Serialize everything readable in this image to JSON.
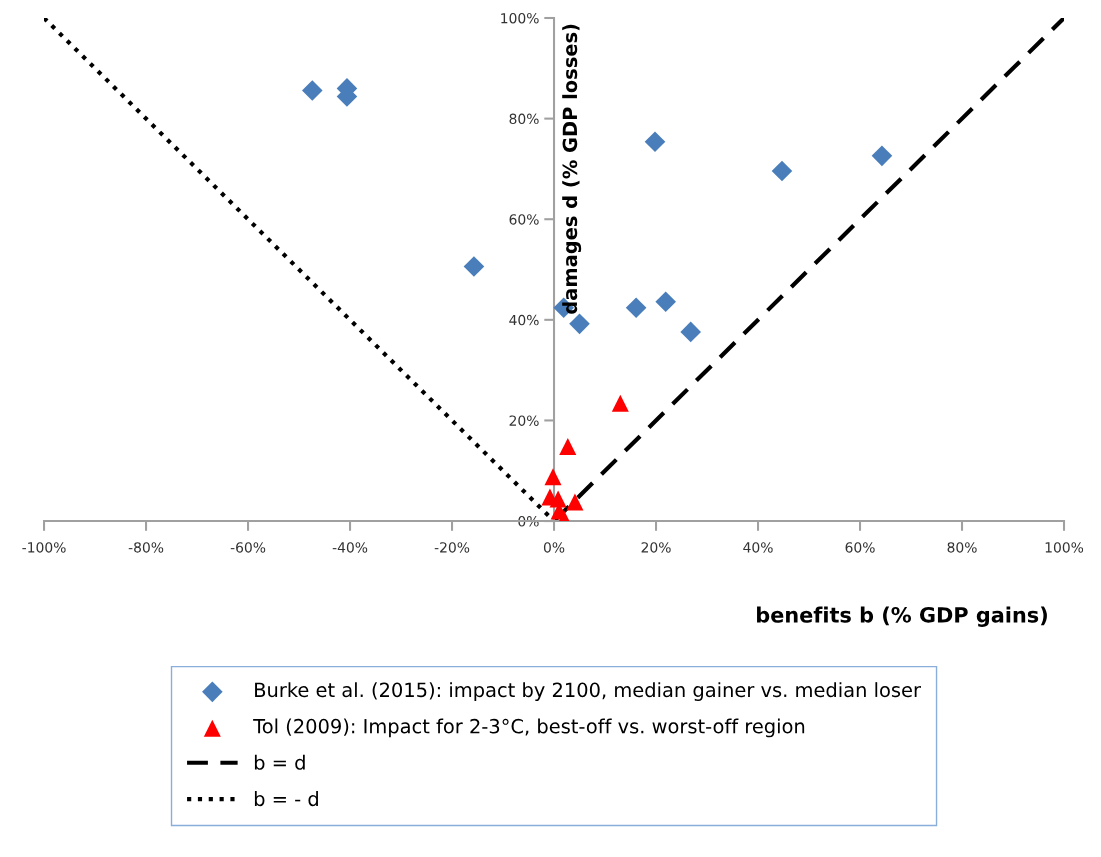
{
  "chart_data": {
    "type": "scatter",
    "xlabel": "benefits b (% GDP gains)",
    "ylabel": "damages d (% GDP losses)",
    "xlim": [
      -100,
      100
    ],
    "ylim": [
      0,
      100
    ],
    "xticks": [
      {
        "value": -100,
        "label": "-100%"
      },
      {
        "value": -80,
        "label": "-80%"
      },
      {
        "value": -60,
        "label": "-60%"
      },
      {
        "value": -40,
        "label": "-40%"
      },
      {
        "value": -20,
        "label": "-20%"
      },
      {
        "value": 0,
        "label": "0%"
      },
      {
        "value": 20,
        "label": "20%"
      },
      {
        "value": 40,
        "label": "40%"
      },
      {
        "value": 60,
        "label": "60%"
      },
      {
        "value": 80,
        "label": "80%"
      },
      {
        "value": 100,
        "label": "100%"
      }
    ],
    "yticks": [
      {
        "value": 0,
        "label": "0%"
      },
      {
        "value": 20,
        "label": "20%"
      },
      {
        "value": 40,
        "label": "40%"
      },
      {
        "value": 60,
        "label": "60%"
      },
      {
        "value": 80,
        "label": "80%"
      },
      {
        "value": 100,
        "label": "100%"
      }
    ],
    "grid": false,
    "legend": "bottom",
    "series": [
      {
        "name": "Burke et al. (2015): impact by 2100, median gainer vs. median loser",
        "marker": "diamond",
        "color": "#4a7ebb",
        "x": [
          -47.4,
          -40.6,
          -40.6,
          -15.7,
          19.8,
          44.7,
          64.3,
          1.9,
          5.0,
          16.1,
          21.9,
          26.8
        ],
        "values": [
          85.6,
          86,
          84.4,
          50.6,
          75.4,
          69.6,
          72.6,
          42.4,
          39.2,
          42.4,
          43.6,
          37.6
        ]
      },
      {
        "name": "Tol (2009): Impact for 2-3°C, best-off vs. worst-off region",
        "marker": "triangle",
        "color": "#ff0000",
        "x": [
          13.0,
          2.7,
          -0.2,
          -0.8,
          0.8,
          4.1,
          1.0,
          2.0
        ],
        "values": [
          23.4,
          14.8,
          8.8,
          4.8,
          4.4,
          3.8,
          2.0,
          0.4
        ]
      },
      {
        "name": "b = d",
        "type": "line",
        "line_style": "dashed",
        "marker": "none",
        "color": "#000000",
        "x": [
          0,
          100
        ],
        "values": [
          0,
          100
        ]
      },
      {
        "name": "b = - d",
        "type": "line",
        "line_style": "dotted",
        "marker": "none",
        "color": "#000000",
        "x": [
          -100,
          0
        ],
        "values": [
          100,
          0
        ]
      }
    ]
  }
}
